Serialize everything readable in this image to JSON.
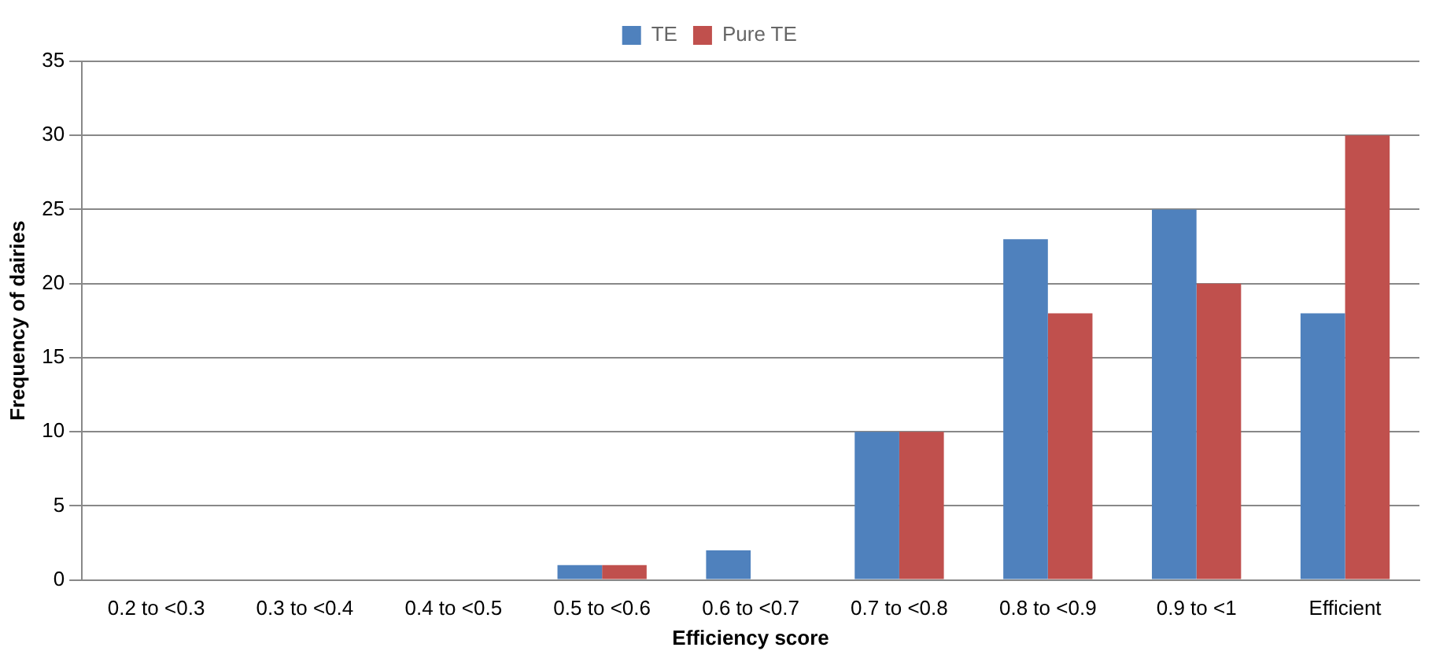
{
  "chart_data": {
    "type": "bar",
    "xlabel": "Efficiency score",
    "ylabel": "Frequency of dairies",
    "categories": [
      "0.2 to <0.3",
      "0.3 to <0.4",
      "0.4 to <0.5",
      "0.5 to <0.6",
      "0.6 to <0.7",
      "0.7 to <0.8",
      "0.8 to <0.9",
      "0.9 to <1",
      "Efficient"
    ],
    "series": [
      {
        "name": "TE",
        "color": "#4f81bd",
        "values": [
          0,
          0,
          0,
          1,
          2,
          10,
          23,
          25,
          18
        ]
      },
      {
        "name": "Pure TE",
        "color": "#c0504d",
        "values": [
          0,
          0,
          0,
          1,
          0,
          10,
          18,
          20,
          30
        ]
      }
    ],
    "ylim": [
      0,
      35
    ],
    "yticks": [
      0,
      5,
      10,
      15,
      20,
      25,
      30,
      35
    ],
    "grid": "y",
    "legend": "top"
  }
}
